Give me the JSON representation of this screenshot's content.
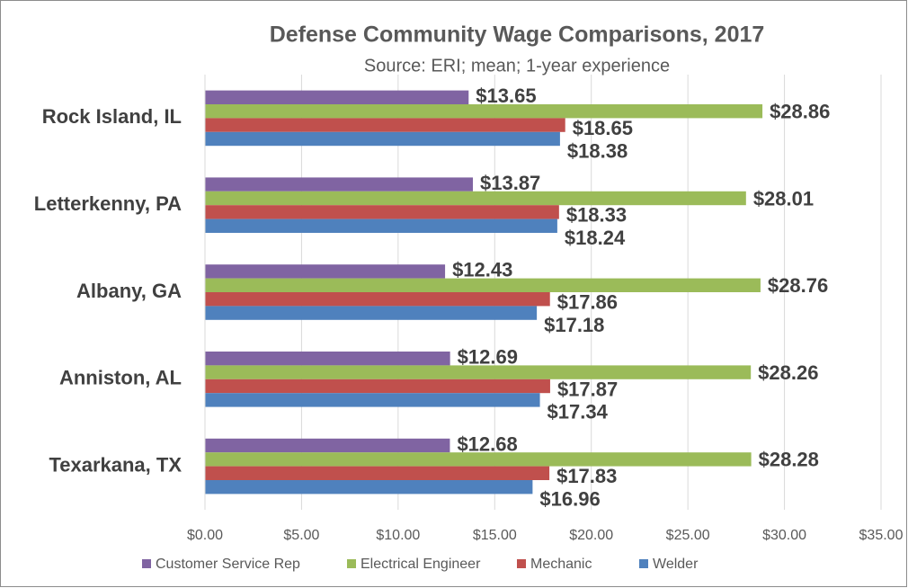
{
  "chart_data": {
    "type": "bar",
    "orientation": "horizontal",
    "title": "Defense Community Wage Comparisons, 2017",
    "subtitle": "Source: ERI; mean; 1-year experience",
    "categories": [
      "Rock Island, IL",
      "Letterkenny, PA",
      "Albany, GA",
      "Anniston, AL",
      "Texarkana, TX"
    ],
    "series": [
      {
        "name": "Customer Service Rep",
        "color": "#8064a2",
        "values": [
          13.65,
          13.87,
          12.43,
          12.69,
          12.68
        ],
        "value_labels": [
          "$13.65",
          "$13.87",
          "$12.43",
          "$12.69",
          "$12.68"
        ]
      },
      {
        "name": "Electrical Engineer",
        "color": "#9bbb59",
        "values": [
          28.86,
          28.01,
          28.76,
          28.26,
          28.28
        ],
        "value_labels": [
          "$28.86",
          "$28.01",
          "$28.76",
          "$28.26",
          "$28.28"
        ]
      },
      {
        "name": "Mechanic",
        "color": "#c0504d",
        "values": [
          18.65,
          18.33,
          17.86,
          17.87,
          17.83
        ],
        "value_labels": [
          "$18.65",
          "$18.33",
          "$17.86",
          "$17.87",
          "$17.83"
        ]
      },
      {
        "name": "Welder",
        "color": "#4f81bd",
        "values": [
          18.38,
          18.24,
          17.18,
          17.34,
          16.96
        ],
        "value_labels": [
          "$18.38",
          "$18.24",
          "$17.18",
          "$17.34",
          "$16.96"
        ]
      }
    ],
    "xlim": [
      0,
      35
    ],
    "xticks": [
      {
        "value": 0,
        "label": "$0.00"
      },
      {
        "value": 5,
        "label": "$5.00"
      },
      {
        "value": 10,
        "label": "$10.00"
      },
      {
        "value": 15,
        "label": "$15.00"
      },
      {
        "value": 20,
        "label": "$20.00"
      },
      {
        "value": 25,
        "label": "$25.00"
      },
      {
        "value": 30,
        "label": "$30.00"
      },
      {
        "value": 35,
        "label": "$35.00"
      }
    ],
    "grid": true,
    "legend": "bottom"
  }
}
